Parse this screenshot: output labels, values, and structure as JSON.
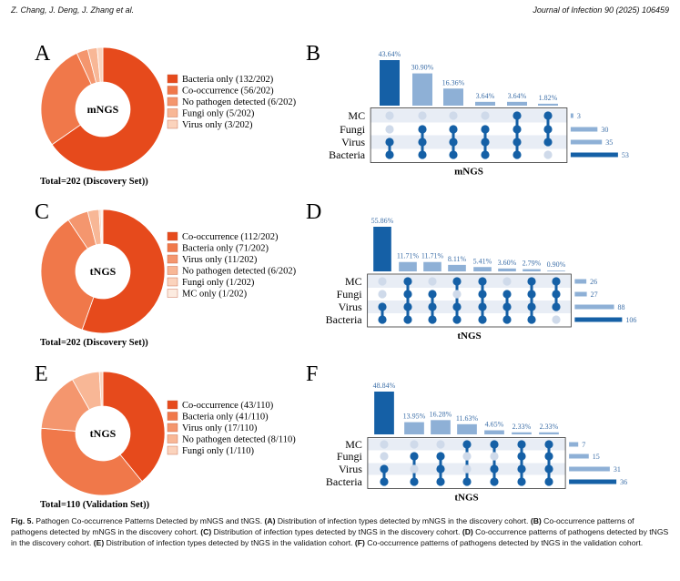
{
  "header": {
    "authors": "Z. Chang, J. Deng, J. Zhang et al.",
    "journal": "Journal of Infection 90 (2025) 106459"
  },
  "figure": {
    "row_labels": [
      "mNGS",
      "tNGS",
      "tNGS"
    ],
    "upset_sets": [
      "MC",
      "Fungi",
      "Virus",
      "Bacteria"
    ],
    "colors": {
      "donut": [
        "#e64a1c",
        "#f0784a",
        "#f4966e",
        "#f8b796",
        "#fbd3bd",
        "#fcebe0"
      ],
      "upset_dark": "#1560a6",
      "upset_light": "#8eb0d6",
      "dot_inactive": "#cfdaea",
      "row_band": "#e8edf5"
    }
  },
  "chart_data": [
    {
      "panel": "A",
      "type": "pie",
      "center": "mNGS",
      "total": "Total=202 (Discovery Set))",
      "slices": [
        {
          "label": "Bacteria only (132/202)",
          "value": 132
        },
        {
          "label": "Co-occurrence (56/202)",
          "value": 56
        },
        {
          "label": "No pathogen detected (6/202)",
          "value": 6
        },
        {
          "label": "Fungi only (5/202)",
          "value": 5
        },
        {
          "label": "Virus only (3/202)",
          "value": 3
        }
      ]
    },
    {
      "panel": "C",
      "type": "pie",
      "center": "tNGS",
      "total": "Total=202 (Discovery Set))",
      "slices": [
        {
          "label": "Co-occurrence (112/202)",
          "value": 112
        },
        {
          "label": "Bacteria only (71/202)",
          "value": 71
        },
        {
          "label": "Virus only (11/202)",
          "value": 11
        },
        {
          "label": "No pathogen detected (6/202)",
          "value": 6
        },
        {
          "label": "Fungi only (1/202)",
          "value": 1
        },
        {
          "label": "MC only (1/202)",
          "value": 1
        }
      ]
    },
    {
      "panel": "E",
      "type": "pie",
      "center": "tNGS",
      "total": "Total=110 (Validation Set))",
      "slices": [
        {
          "label": "Co-occurrence (43/110)",
          "value": 43
        },
        {
          "label": "Bacteria only (41/110)",
          "value": 41
        },
        {
          "label": "Virus only (17/110)",
          "value": 17
        },
        {
          "label": "No pathogen detected (8/110)",
          "value": 8
        },
        {
          "label": "Fungi only (1/110)",
          "value": 1
        }
      ]
    },
    {
      "panel": "B",
      "type": "bar",
      "xlabel": "mNGS",
      "intersections": [
        {
          "label": "43.64%",
          "value": 43.64,
          "members": [
            2,
            3
          ]
        },
        {
          "label": "30.90%",
          "value": 30.9,
          "members": [
            1,
            2,
            3
          ]
        },
        {
          "label": "16.36%",
          "value": 16.36,
          "members": [
            1,
            2,
            3
          ]
        },
        {
          "label": "3.64%",
          "value": 3.64,
          "members": [
            1,
            2,
            3
          ]
        },
        {
          "label": "3.64%",
          "value": 3.64,
          "members": [
            0,
            1,
            2,
            3
          ]
        },
        {
          "label": "1.82%",
          "value": 1.82,
          "members": [
            0,
            1,
            2
          ]
        }
      ],
      "set_sizes": [
        3,
        30,
        35,
        53
      ]
    },
    {
      "panel": "D",
      "type": "bar",
      "xlabel": "tNGS",
      "intersections": [
        {
          "label": "55.86%",
          "value": 55.86,
          "members": [
            2,
            3
          ]
        },
        {
          "label": "11.71%",
          "value": 11.71,
          "members": [
            0,
            1,
            2,
            3
          ]
        },
        {
          "label": "11.71%",
          "value": 11.71,
          "members": [
            1,
            2,
            3
          ]
        },
        {
          "label": "8.11%",
          "value": 8.11,
          "members": [
            0,
            2,
            3
          ]
        },
        {
          "label": "5.41%",
          "value": 5.41,
          "members": [
            0,
            1,
            2,
            3
          ]
        },
        {
          "label": "3.60%",
          "value": 3.6,
          "members": [
            1,
            2,
            3
          ]
        },
        {
          "label": "2.79%",
          "value": 2.79,
          "members": [
            0,
            1,
            2,
            3
          ]
        },
        {
          "label": "0.90%",
          "value": 0.9,
          "members": [
            0,
            1,
            2
          ]
        }
      ],
      "set_sizes": [
        26,
        27,
        88,
        106
      ]
    },
    {
      "panel": "F",
      "type": "bar",
      "xlabel": "tNGS",
      "intersections": [
        {
          "label": "48.84%",
          "value": 48.84,
          "members": [
            2,
            3
          ]
        },
        {
          "label": "13.95%",
          "value": 13.95,
          "members": [
            1,
            3
          ]
        },
        {
          "label": "16.28%",
          "value": 16.28,
          "members": [
            1,
            2,
            3
          ]
        },
        {
          "label": "11.63%",
          "value": 11.63,
          "members": [
            0,
            3
          ]
        },
        {
          "label": "4.65%",
          "value": 4.65,
          "members": [
            0,
            2,
            3
          ]
        },
        {
          "label": "2.33%",
          "value": 2.33,
          "members": [
            0,
            1,
            2,
            3
          ]
        },
        {
          "label": "2.33%",
          "value": 2.33,
          "members": [
            0,
            1,
            2,
            3
          ]
        }
      ],
      "set_sizes": [
        7,
        15,
        31,
        36
      ]
    }
  ],
  "caption": {
    "label": "Fig. 5.",
    "title": "Pathogen Co-occurrence Patterns Detected by mNGS and tNGS.",
    "parts": [
      {
        "tag": "(A)",
        "text": "Distribution of infection types detected by mNGS in the discovery cohort."
      },
      {
        "tag": "(B)",
        "text": "Co-occurrence patterns of pathogens detected by mNGS in the discovery cohort."
      },
      {
        "tag": "(C)",
        "text": "Distribution of infection types detected by tNGS in the discovery cohort."
      },
      {
        "tag": "(D)",
        "text": "Co-occurrence patterns of pathogens detected by tNGS in the discovery cohort."
      },
      {
        "tag": "(E)",
        "text": "Distribution of infection types detected by tNGS in the validation cohort."
      },
      {
        "tag": "(F)",
        "text": "Co-occurrence patterns of pathogens detected by tNGS in the validation cohort."
      }
    ]
  }
}
